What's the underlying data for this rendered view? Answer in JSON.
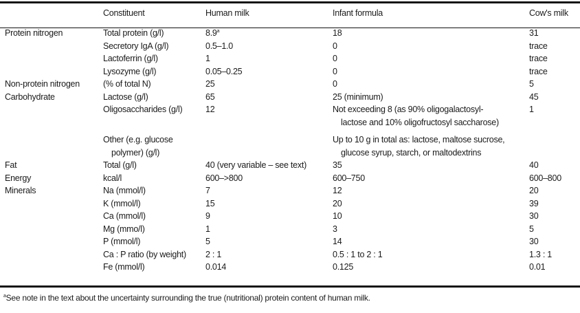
{
  "table": {
    "headers": [
      "",
      "Constituent",
      "Human milk",
      "Infant formula",
      "Cow's milk"
    ],
    "rows": [
      {
        "category": "Protein nitrogen",
        "constituent": [
          "Total protein (g/l)"
        ],
        "human": [
          "8.9"
        ],
        "human_note": "a",
        "formula": [
          "18"
        ],
        "cow": [
          "31"
        ]
      },
      {
        "category": "",
        "constituent": [
          "Secretory IgA (g/l)"
        ],
        "human": [
          "0.5–1.0"
        ],
        "formula": [
          "0"
        ],
        "cow": [
          "trace"
        ]
      },
      {
        "category": "",
        "constituent": [
          "Lactoferrin (g/l)"
        ],
        "human": [
          "1"
        ],
        "formula": [
          "0"
        ],
        "cow": [
          "trace"
        ]
      },
      {
        "category": "",
        "constituent": [
          "Lysozyme (g/l)"
        ],
        "human": [
          "0.05–0.25"
        ],
        "formula": [
          "0"
        ],
        "cow": [
          "trace"
        ]
      },
      {
        "category": "Non-protein nitrogen",
        "constituent": [
          "(% of total N)"
        ],
        "human": [
          "25"
        ],
        "formula": [
          "0"
        ],
        "cow": [
          "5"
        ]
      },
      {
        "category": "Carbohydrate",
        "constituent": [
          "Lactose (g/l)"
        ],
        "human": [
          "65"
        ],
        "formula": [
          "25 (minimum)"
        ],
        "cow": [
          "45"
        ]
      },
      {
        "category": "",
        "constituent": [
          "Oligosaccharides (g/l)"
        ],
        "human": [
          "12"
        ],
        "formula": [
          "Not exceeding 8 (as 90% oligogalactosyl-",
          "lactose and 10% oligofructosyl saccharose)"
        ],
        "cow": [
          "1"
        ],
        "gap_after": true
      },
      {
        "category": "",
        "constituent": [
          "Other (e.g. glucose",
          "polymer) (g/l)"
        ],
        "human": [
          ""
        ],
        "formula": [
          "Up to 10 g in total as: lactose, maltose sucrose,",
          "glucose syrup, starch, or maltodextrins"
        ],
        "cow": [
          ""
        ]
      },
      {
        "category": "Fat",
        "constituent": [
          "Total (g/l)"
        ],
        "human": [
          "40 (very variable – see text)"
        ],
        "formula": [
          "35"
        ],
        "cow": [
          "40"
        ]
      },
      {
        "category": "Energy",
        "constituent": [
          "kcal/l"
        ],
        "human": [
          "600–>800"
        ],
        "formula": [
          "600–750"
        ],
        "cow": [
          "600–800"
        ]
      },
      {
        "category": "Minerals",
        "constituent": [
          "Na (mmol/l)"
        ],
        "human": [
          "7"
        ],
        "formula": [
          "12"
        ],
        "cow": [
          "20"
        ]
      },
      {
        "category": "",
        "constituent": [
          "K (mmol/l)"
        ],
        "human": [
          "15"
        ],
        "formula": [
          "20"
        ],
        "cow": [
          "39"
        ]
      },
      {
        "category": "",
        "constituent": [
          "Ca (mmol/l)"
        ],
        "human": [
          "9"
        ],
        "formula": [
          "10"
        ],
        "cow": [
          "30"
        ]
      },
      {
        "category": "",
        "constituent": [
          "Mg (mmo/l)"
        ],
        "human": [
          "1"
        ],
        "formula": [
          "3"
        ],
        "cow": [
          "5"
        ]
      },
      {
        "category": "",
        "constituent": [
          "P (mmol/l)"
        ],
        "human": [
          "5"
        ],
        "formula": [
          "14"
        ],
        "cow": [
          "30"
        ]
      },
      {
        "category": "",
        "constituent": [
          "Ca : P ratio (by weight)"
        ],
        "human": [
          "2 : 1"
        ],
        "formula": [
          "0.5 : 1 to 2 : 1"
        ],
        "cow": [
          "1.3 : 1"
        ]
      },
      {
        "category": "",
        "constituent": [
          "Fe (mmol/l)"
        ],
        "human": [
          "0.014"
        ],
        "formula": [
          "0.125"
        ],
        "cow": [
          "0.01"
        ]
      }
    ]
  },
  "footnote": {
    "marker": "a",
    "text": "See note in the text about the uncertainty surrounding the true (nutritional) protein content of human milk."
  }
}
